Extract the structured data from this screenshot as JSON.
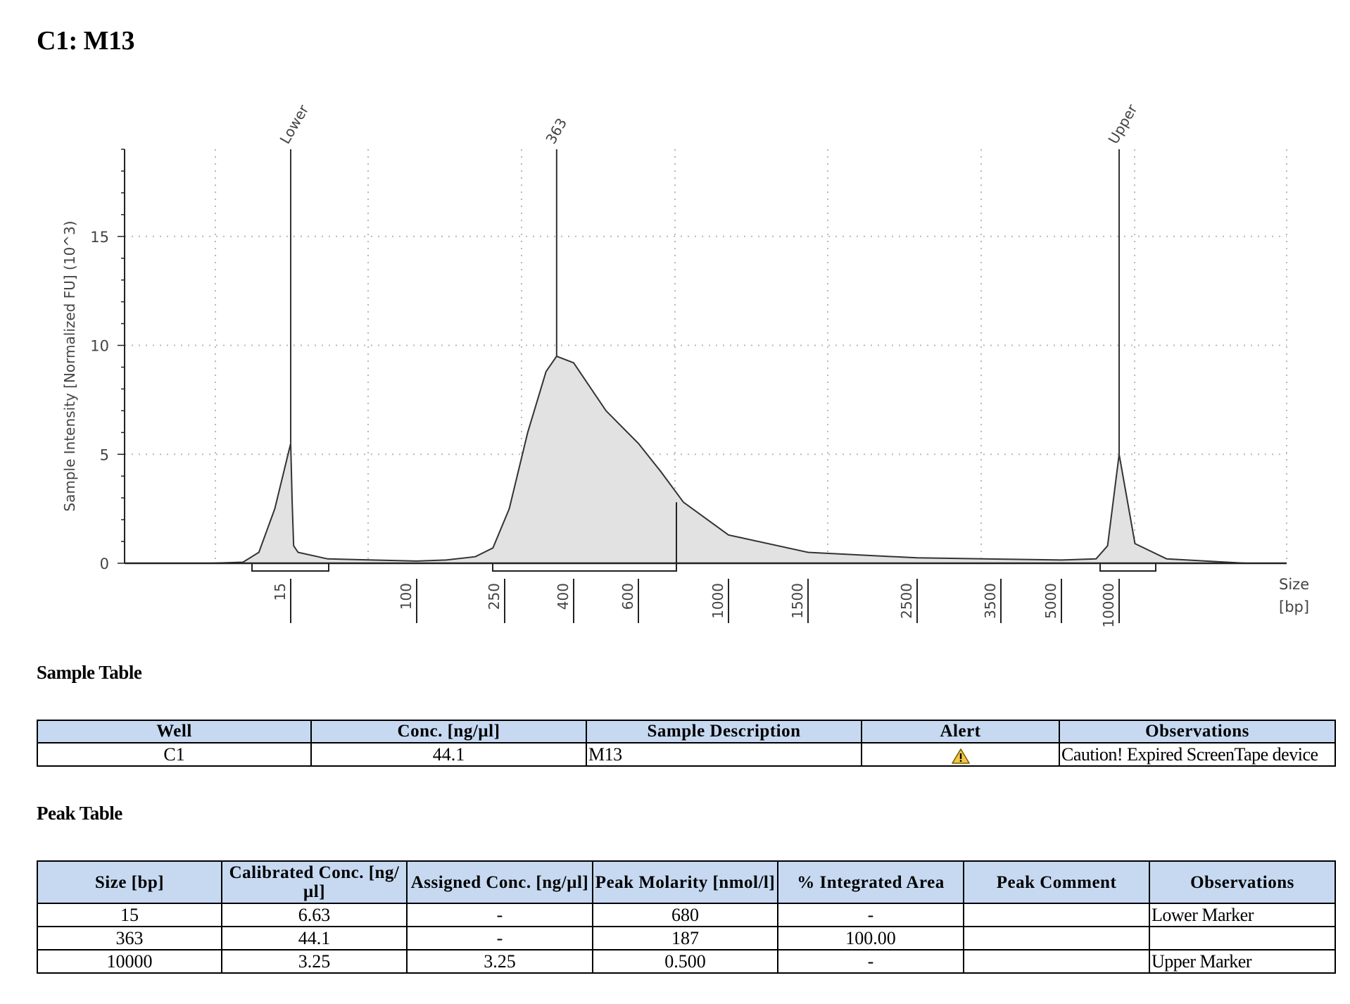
{
  "page_title": "C1: M13",
  "chart_data": {
    "type": "area",
    "ylabel": "Sample Intensity [Normalized FU] (10^3)",
    "xlabel": "Size\n[bp]",
    "xlabel_lines": [
      "Size",
      "[bp]"
    ],
    "ylim": [
      0,
      19
    ],
    "y_ticks": [
      "0",
      "5",
      "10",
      "15"
    ],
    "x_ticks": [
      "15",
      "100",
      "250",
      "400",
      "600",
      "1000",
      "1500",
      "2500",
      "3500",
      "5000",
      "10000"
    ],
    "grid": true,
    "x_scale": "log",
    "series": [
      {
        "values": [
          {
            "x": 10,
            "y": 0.0
          },
          {
            "x": 12,
            "y": 0.05
          },
          {
            "x": 13,
            "y": 0.5
          },
          {
            "x": 14,
            "y": 2.5
          },
          {
            "x": 15,
            "y": 5.5
          },
          {
            "x": 16,
            "y": 2.8
          },
          {
            "x": 17,
            "y": 0.8
          },
          {
            "x": 20,
            "y": 0.5
          },
          {
            "x": 40,
            "y": 0.2
          },
          {
            "x": 100,
            "y": 0.1
          },
          {
            "x": 150,
            "y": 0.15
          },
          {
            "x": 200,
            "y": 0.3
          },
          {
            "x": 230,
            "y": 0.7
          },
          {
            "x": 260,
            "y": 2.5
          },
          {
            "x": 300,
            "y": 6.0
          },
          {
            "x": 340,
            "y": 8.8
          },
          {
            "x": 363,
            "y": 9.5
          },
          {
            "x": 400,
            "y": 9.2
          },
          {
            "x": 500,
            "y": 7.0
          },
          {
            "x": 600,
            "y": 5.5
          },
          {
            "x": 700,
            "y": 4.2
          },
          {
            "x": 800,
            "y": 2.8
          },
          {
            "x": 1000,
            "y": 1.3
          },
          {
            "x": 1500,
            "y": 0.5
          },
          {
            "x": 2500,
            "y": 0.25
          },
          {
            "x": 5000,
            "y": 0.15
          },
          {
            "x": 8000,
            "y": 0.2
          },
          {
            "x": 9000,
            "y": 0.8
          },
          {
            "x": 10000,
            "y": 5.0
          },
          {
            "x": 11000,
            "y": 0.9
          },
          {
            "x": 13000,
            "y": 0.2
          },
          {
            "x": 18000,
            "y": 0.0
          }
        ]
      }
    ],
    "peaks": [
      {
        "label": "Lower",
        "x": 15,
        "y": 5.5
      },
      {
        "label": "363",
        "x": 363,
        "y": 9.5
      },
      {
        "label": "Upper",
        "x": 10000,
        "y": 5.0
      }
    ]
  },
  "sample_table": {
    "heading": "Sample Table",
    "headers": [
      "Well",
      "Conc. [ng/µl]",
      "Sample Description",
      "Alert",
      "Observations"
    ],
    "rows": [
      [
        "C1",
        "44.1",
        "M13",
        "",
        "Caution! Expired ScreenTape device"
      ]
    ]
  },
  "peak_table": {
    "heading": "Peak Table",
    "headers": [
      "Size [bp]",
      "Calibrated Conc. [ng/µl]",
      "Assigned Conc. [ng/µl]",
      "Peak Molarity [nmol/l]",
      "% Integrated Area",
      "Peak Comment",
      "Observations"
    ],
    "rows": [
      [
        "15",
        "6.63",
        "-",
        "680",
        "-",
        "",
        "Lower Marker"
      ],
      [
        "363",
        "44.1",
        "-",
        "187",
        "100.00",
        "",
        ""
      ],
      [
        "10000",
        "3.25",
        "3.25",
        "0.500",
        "-",
        "",
        "Upper Marker"
      ]
    ]
  }
}
